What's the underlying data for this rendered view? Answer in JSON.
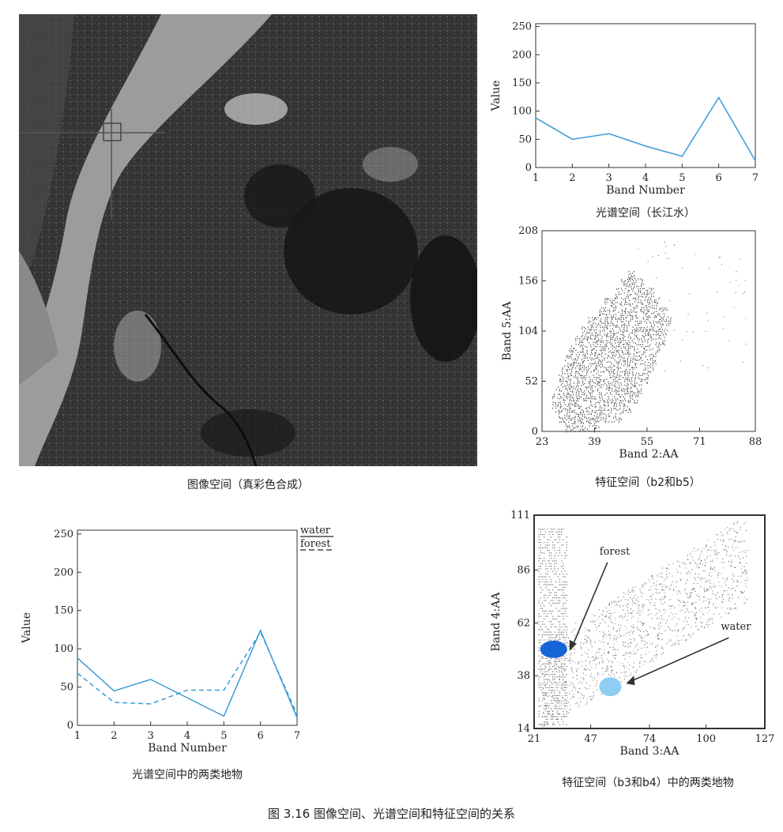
{
  "figure_caption": "图 3.16   图像空间、光谱空间和特征空间的关系",
  "image_panel": {
    "caption": "图像空间（真彩色合成）"
  },
  "chart_data": [
    {
      "id": "spectral-water",
      "type": "line",
      "caption": "光谱空间（长江水）",
      "xlabel": "Band Number",
      "ylabel": "Value",
      "xlim": [
        1,
        7
      ],
      "ylim": [
        0,
        255
      ],
      "x_ticks": [
        "1",
        "2",
        "3",
        "4",
        "5",
        "6",
        "7"
      ],
      "y_ticks": [
        "0",
        "50",
        "100",
        "150",
        "200",
        "250"
      ],
      "x": [
        1,
        2,
        3,
        4,
        5,
        6,
        7
      ],
      "series": [
        {
          "values": [
            88,
            50,
            60,
            38,
            20,
            124,
            12
          ],
          "color": "#3a9bd8",
          "style": "solid"
        }
      ]
    },
    {
      "id": "feature-b2b5",
      "type": "scatter",
      "caption": "特征空间（b2和b5）",
      "xlabel": "Band 2:AA",
      "ylabel": "Band 5:AA",
      "xlim": [
        23,
        88
      ],
      "ylim": [
        0,
        208
      ],
      "x_ticks": [
        "23",
        "39",
        "55",
        "71",
        "88"
      ],
      "y_ticks": [
        "0",
        "52",
        "104",
        "156",
        "208"
      ],
      "cluster_rows": [
        [
          0,
          30,
          40
        ],
        [
          10,
          28,
          47
        ],
        [
          20,
          26,
          50
        ],
        [
          30,
          26,
          52
        ],
        [
          40,
          27,
          53
        ],
        [
          50,
          28,
          55
        ],
        [
          60,
          29,
          57
        ],
        [
          70,
          30,
          58
        ],
        [
          80,
          31,
          59
        ],
        [
          90,
          33,
          60
        ],
        [
          100,
          35,
          61
        ],
        [
          110,
          37,
          62
        ],
        [
          120,
          40,
          61
        ],
        [
          130,
          42,
          59
        ],
        [
          140,
          45,
          57
        ],
        [
          150,
          47,
          54
        ],
        [
          158,
          49,
          51
        ]
      ]
    },
    {
      "id": "spectral-two-classes",
      "type": "line",
      "caption": "光谱空间中的两类地物",
      "xlabel": "Band Number",
      "ylabel": "Value",
      "xlim": [
        1,
        7
      ],
      "ylim": [
        0,
        255
      ],
      "x_ticks": [
        "1",
        "2",
        "3",
        "4",
        "5",
        "6",
        "7"
      ],
      "y_ticks": [
        "0",
        "50",
        "100",
        "150",
        "200",
        "250"
      ],
      "x": [
        1,
        2,
        3,
        4,
        5,
        6,
        7
      ],
      "series": [
        {
          "name": "water",
          "values": [
            88,
            45,
            60,
            36,
            12,
            124,
            10
          ],
          "color": "#3a9bd8",
          "style": "solid"
        },
        {
          "name": "forest",
          "values": [
            68,
            30,
            28,
            46,
            46,
            122,
            14
          ],
          "color": "#3a9bd8",
          "style": "dashed"
        }
      ]
    },
    {
      "id": "feature-b3b4",
      "type": "scatter",
      "caption": "特征空间（b3和b4）中的两类地物",
      "xlabel": "Band 3:AA",
      "ylabel": "Band 4:AA",
      "xlim": [
        21,
        127
      ],
      "ylim": [
        14,
        111
      ],
      "x_ticks": [
        "21",
        "47",
        "74",
        "100",
        "127"
      ],
      "y_ticks": [
        "14",
        "38",
        "62",
        "86",
        "111"
      ],
      "clusters": [
        {
          "name": "forest",
          "x": 30,
          "y": 50,
          "color": "#1565d8"
        },
        {
          "name": "water",
          "x": 56,
          "y": 33,
          "color": "#8fcdf2"
        }
      ],
      "annotations": [
        {
          "text": "forest",
          "target": "forest"
        },
        {
          "text": "water",
          "target": "water"
        }
      ]
    }
  ]
}
